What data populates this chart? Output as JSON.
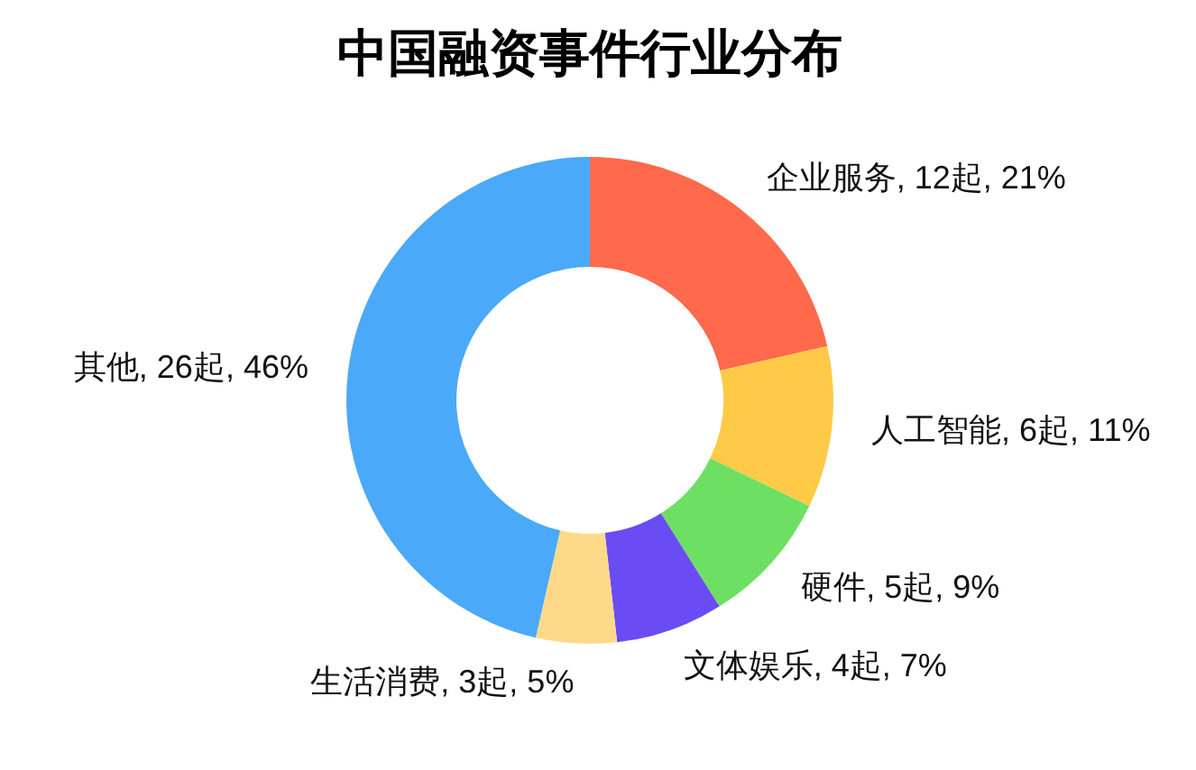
{
  "chart_data": {
    "type": "donut",
    "title": "中国融资事件行业分布",
    "categories": [
      "企业服务",
      "人工智能",
      "硬件",
      "文体娱乐",
      "生活消费",
      "其他"
    ],
    "values": [
      12,
      6,
      5,
      4,
      3,
      26
    ],
    "value_labels": [
      "12起, 21%",
      "6起, 11%",
      "5起, 9%",
      "4起, 7%",
      "3起, 5%",
      "26起, 46%"
    ],
    "colors": [
      "#ff694c",
      "#ffca47",
      "#6ddf62",
      "#6a4cf5",
      "#ffd98a",
      "#4aa9f9"
    ]
  }
}
